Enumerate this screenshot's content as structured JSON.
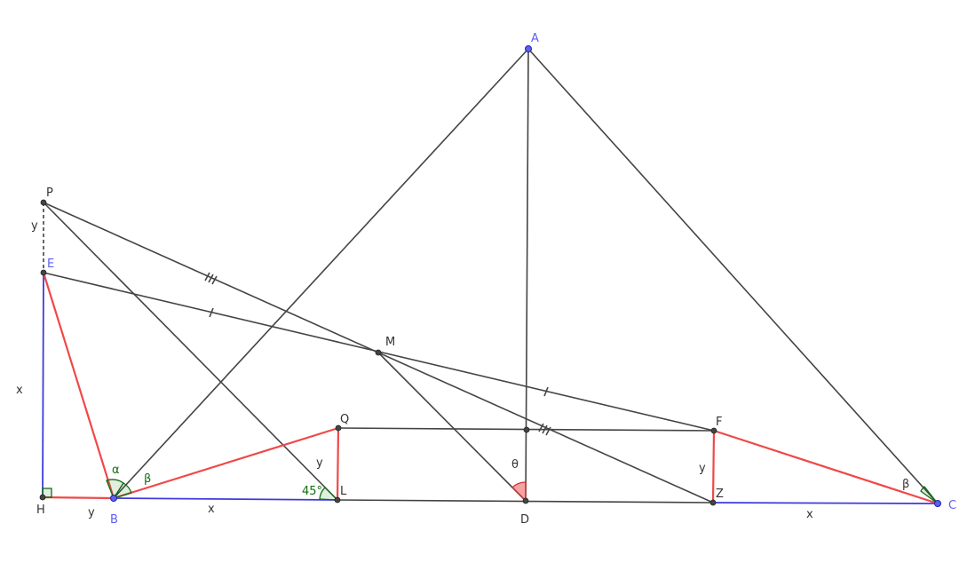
{
  "points": {
    "A": "A",
    "B": "B",
    "C": "C",
    "D": "D",
    "E": "E",
    "F": "F",
    "H": "H",
    "L": "L",
    "M": "M",
    "P": "P",
    "Q": "Q",
    "Z": "Z"
  },
  "segment_labels": {
    "x_HE": "x",
    "y_PE": "y",
    "y_HB": "y",
    "x_BL": "x",
    "y_QL": "y",
    "y_FZ": "y",
    "x_ZC": "x"
  },
  "angles": {
    "alpha": "α",
    "beta_B": "β",
    "beta_C": "β",
    "deg45": "45°",
    "theta": "θ"
  },
  "colors": {
    "segment": "#444444",
    "red": "#f04848",
    "blue": "#3c3cdc",
    "angle": "#107010"
  }
}
